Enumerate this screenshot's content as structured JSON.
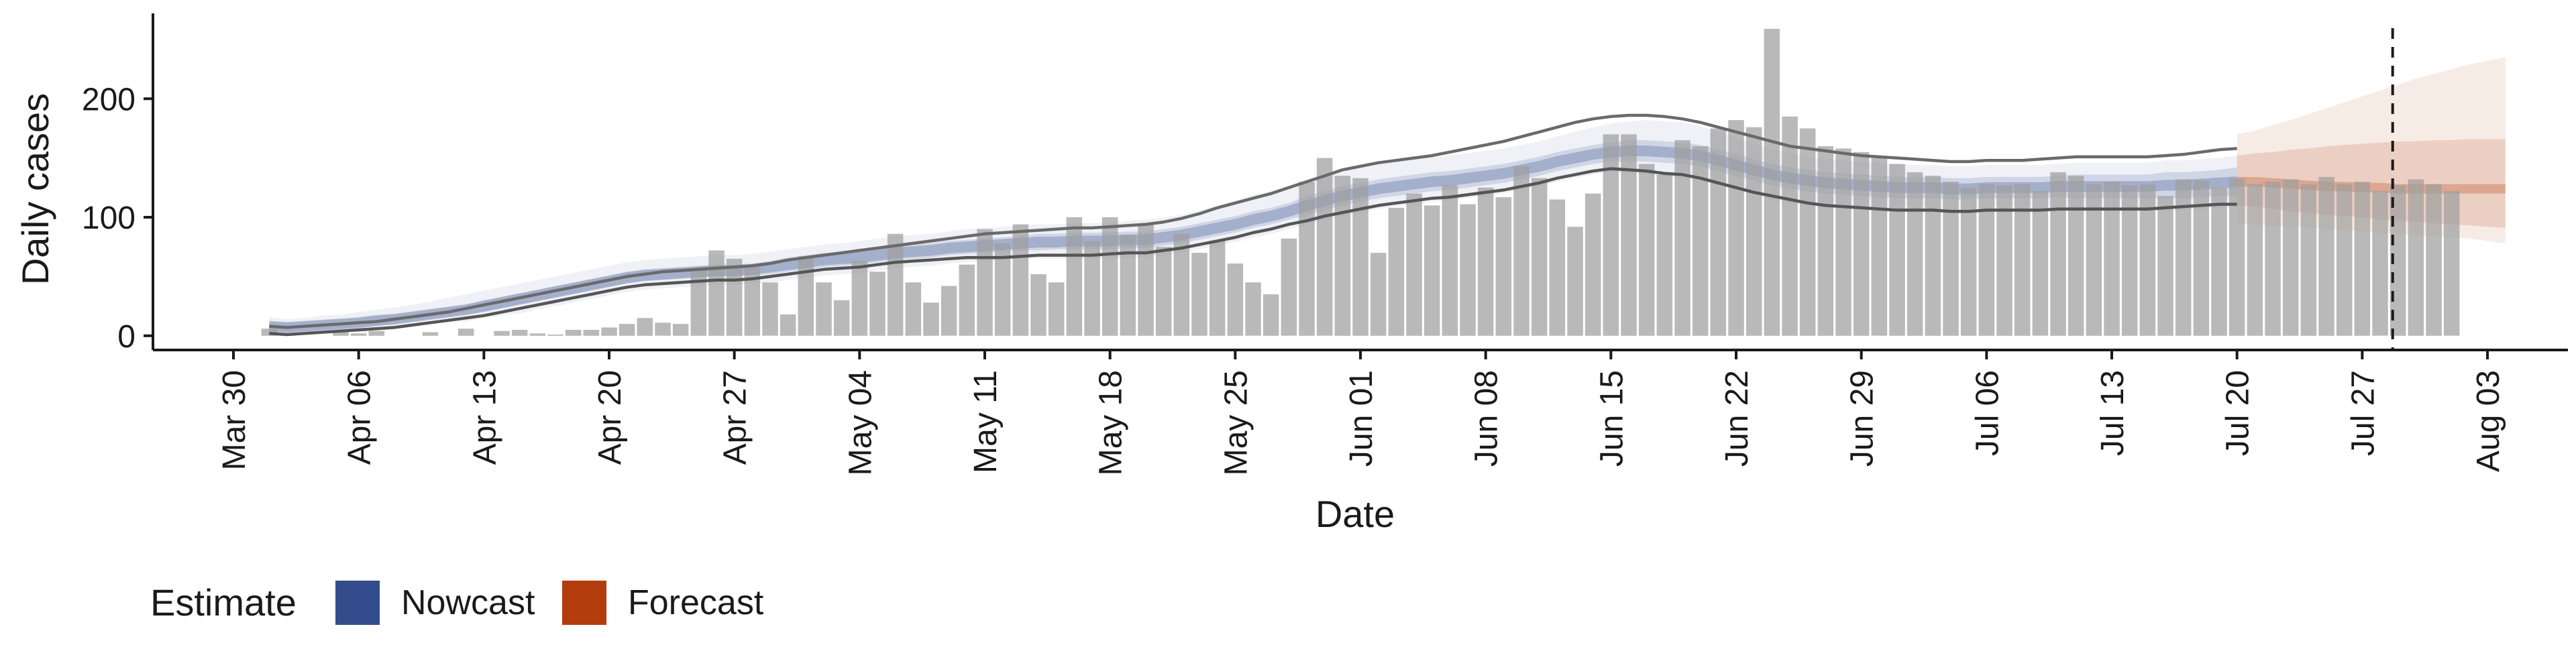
{
  "chart_data": {
    "type": "bar",
    "xlabel": "Date",
    "ylabel": "Daily cases",
    "yticks": [
      0,
      100,
      200
    ],
    "ylim": [
      -12,
      272
    ],
    "x_ticks": [
      "Mar 30",
      "Apr 06",
      "Apr 13",
      "Apr 20",
      "Apr 27",
      "May 04",
      "May 11",
      "May 18",
      "May 25",
      "Jun 01",
      "Jun 08",
      "Jun 15",
      "Jun 22",
      "Jun 29",
      "Jul 06",
      "Jul 13",
      "Jul 20",
      "Jul 27",
      "Aug 03"
    ],
    "x_tick_days": [
      0,
      7,
      14,
      21,
      28,
      35,
      42,
      49,
      56,
      63,
      70,
      77,
      84,
      91,
      98,
      105,
      112,
      119,
      126
    ],
    "x_range_days": [
      -4.5,
      130.5
    ],
    "first_bar_day": 2,
    "vline_day": 120.7,
    "grid": false,
    "daily_cases": [
      6,
      2,
      0,
      0,
      3,
      2,
      4,
      0,
      0,
      3,
      0,
      6,
      0,
      4,
      5,
      2,
      1,
      5,
      5,
      7,
      10,
      15,
      11,
      10,
      57,
      72,
      65,
      58,
      45,
      18,
      67,
      45,
      30,
      63,
      54,
      86,
      45,
      28,
      42,
      60,
      90,
      78,
      94,
      52,
      45,
      100,
      80,
      100,
      85,
      95,
      75,
      86,
      70,
      80,
      61,
      45,
      35,
      82,
      130,
      150,
      135,
      133,
      70,
      108,
      120,
      110,
      127,
      111,
      125,
      117,
      143,
      133,
      115,
      92,
      120,
      170,
      170,
      145,
      136,
      165,
      160,
      175,
      182,
      176,
      259,
      185,
      175,
      160,
      158,
      155,
      150,
      145,
      138,
      135,
      130,
      125,
      128,
      127,
      128,
      122,
      138,
      135,
      128,
      130,
      127,
      128,
      118,
      132,
      131,
      125,
      133,
      128,
      130,
      132,
      128,
      134,
      128,
      130,
      122,
      127,
      132,
      128,
      122
    ],
    "series": [
      {
        "name": "Nowcast",
        "color": "#324C8C",
        "start_day": 2,
        "end_day": 112,
        "median": [
          8,
          7,
          8,
          9,
          10,
          11,
          13,
          14,
          16,
          18,
          20,
          22,
          25,
          28,
          31,
          34,
          37,
          40,
          43,
          46,
          49,
          51,
          52,
          53,
          54,
          55,
          55,
          56,
          58,
          60,
          62,
          64,
          65,
          66,
          68,
          70,
          71,
          72,
          74,
          75,
          76,
          77,
          78,
          79,
          79,
          80,
          80,
          80,
          81,
          81,
          83,
          85,
          88,
          91,
          94,
          98,
          101,
          105,
          110,
          114,
          118,
          121,
          124,
          126,
          128,
          130,
          131,
          133,
          135,
          137,
          140,
          143,
          147,
          150,
          153,
          155,
          156,
          156,
          155,
          154,
          152,
          148,
          144,
          140,
          136,
          133,
          131,
          129,
          128,
          127,
          126,
          125,
          125,
          125,
          124,
          124,
          125,
          125,
          125,
          125,
          126,
          126,
          126,
          126,
          126,
          126,
          127,
          127,
          128,
          129,
          130
        ],
        "inner_lo": [
          4,
          3,
          4,
          5,
          6,
          7,
          8,
          10,
          12,
          14,
          16,
          18,
          20,
          23,
          26,
          29,
          32,
          35,
          38,
          41,
          44,
          46,
          47,
          48,
          49,
          50,
          50,
          51,
          52,
          54,
          56,
          58,
          59,
          60,
          62,
          64,
          65,
          66,
          68,
          69,
          70,
          71,
          72,
          72,
          73,
          73,
          73,
          73,
          74,
          74,
          76,
          78,
          81,
          84,
          87,
          91,
          94,
          98,
          102,
          106,
          110,
          113,
          116,
          118,
          120,
          122,
          123,
          125,
          127,
          129,
          132,
          135,
          139,
          142,
          145,
          147,
          147,
          147,
          146,
          145,
          143,
          139,
          135,
          131,
          127,
          124,
          122,
          120,
          119,
          118,
          117,
          116,
          116,
          116,
          115,
          115,
          116,
          116,
          116,
          116,
          117,
          116,
          116,
          116,
          116,
          116,
          116,
          116,
          117,
          118,
          118
        ],
        "inner_hi": [
          12,
          11,
          12,
          13,
          14,
          15,
          17,
          18,
          20,
          22,
          24,
          26,
          30,
          33,
          36,
          39,
          42,
          45,
          48,
          51,
          54,
          56,
          57,
          58,
          59,
          60,
          60,
          61,
          63,
          66,
          68,
          70,
          71,
          72,
          74,
          76,
          77,
          78,
          80,
          81,
          82,
          83,
          84,
          86,
          86,
          87,
          87,
          87,
          88,
          88,
          90,
          92,
          95,
          98,
          101,
          105,
          108,
          112,
          118,
          122,
          126,
          129,
          132,
          134,
          136,
          138,
          139,
          141,
          143,
          145,
          148,
          151,
          155,
          158,
          161,
          163,
          165,
          165,
          164,
          163,
          161,
          157,
          153,
          149,
          145,
          142,
          140,
          138,
          137,
          136,
          135,
          134,
          134,
          134,
          133,
          133,
          134,
          134,
          134,
          134,
          135,
          136,
          136,
          136,
          136,
          136,
          138,
          138,
          139,
          140,
          142
        ],
        "outer_lo": [
          1,
          0,
          1,
          2,
          3,
          3,
          4,
          6,
          8,
          10,
          11,
          12,
          15,
          17,
          19,
          22,
          25,
          28,
          31,
          34,
          37,
          39,
          40,
          41,
          42,
          43,
          43,
          44,
          45,
          47,
          49,
          51,
          52,
          53,
          55,
          57,
          58,
          59,
          61,
          62,
          63,
          64,
          65,
          65,
          65,
          65,
          65,
          65,
          66,
          66,
          68,
          70,
          73,
          76,
          79,
          83,
          86,
          90,
          94,
          97,
          101,
          104,
          107,
          109,
          111,
          113,
          114,
          116,
          118,
          120,
          123,
          126,
          130,
          133,
          136,
          138,
          137,
          136,
          134,
          133,
          131,
          127,
          123,
          119,
          115,
          112,
          110,
          108,
          107,
          106,
          105,
          104,
          104,
          104,
          103,
          103,
          104,
          104,
          104,
          104,
          105,
          105,
          105,
          105,
          105,
          105,
          106,
          106,
          107,
          108,
          108
        ],
        "outer_hi": [
          16,
          14,
          15,
          17,
          18,
          20,
          22,
          24,
          26,
          29,
          32,
          35,
          38,
          41,
          44,
          47,
          50,
          53,
          56,
          59,
          62,
          64,
          65,
          66,
          67,
          68,
          68,
          69,
          71,
          73,
          75,
          77,
          78,
          80,
          82,
          84,
          85,
          86,
          88,
          90,
          91,
          92,
          93,
          94,
          94,
          95,
          95,
          96,
          97,
          98,
          100,
          102,
          106,
          110,
          114,
          119,
          122,
          126,
          131,
          135,
          139,
          142,
          145,
          147,
          149,
          151,
          152,
          154,
          156,
          158,
          161,
          164,
          168,
          172,
          176,
          179,
          181,
          182,
          181,
          180,
          177,
          172,
          167,
          162,
          157,
          154,
          151,
          149,
          148,
          147,
          146,
          145,
          144,
          144,
          143,
          143,
          144,
          144,
          144,
          144,
          145,
          146,
          146,
          146,
          146,
          146,
          148,
          148,
          149,
          150,
          152
        ],
        "line_lo": [
          2,
          1,
          2,
          3,
          4,
          5,
          6,
          7,
          9,
          11,
          13,
          15,
          17,
          20,
          23,
          26,
          29,
          32,
          35,
          38,
          41,
          43,
          44,
          45,
          46,
          47,
          47,
          48,
          50,
          52,
          54,
          56,
          57,
          58,
          60,
          62,
          63,
          64,
          65,
          66,
          66,
          66,
          67,
          68,
          68,
          68,
          68,
          69,
          70,
          70,
          72,
          74,
          77,
          80,
          83,
          87,
          90,
          94,
          97,
          101,
          104,
          107,
          110,
          112,
          114,
          116,
          117,
          119,
          121,
          123,
          126,
          129,
          133,
          136,
          139,
          141,
          140,
          139,
          137,
          136,
          133,
          129,
          125,
          121,
          118,
          115,
          112,
          110,
          109,
          108,
          107,
          106,
          106,
          106,
          105,
          105,
          106,
          106,
          106,
          106,
          107,
          107,
          107,
          107,
          107,
          107,
          108,
          109,
          110,
          111,
          111
        ],
        "line_hi": [
          8,
          7,
          8,
          9,
          10,
          11,
          12,
          14,
          16,
          18,
          20,
          23,
          26,
          29,
          32,
          35,
          38,
          41,
          44,
          47,
          50,
          52,
          54,
          55,
          56,
          57,
          58,
          59,
          61,
          64,
          66,
          68,
          70,
          72,
          74,
          76,
          78,
          80,
          82,
          84,
          86,
          87,
          88,
          89,
          90,
          91,
          91,
          92,
          93,
          94,
          96,
          99,
          103,
          108,
          112,
          116,
          120,
          125,
          130,
          135,
          140,
          143,
          146,
          148,
          150,
          152,
          155,
          158,
          161,
          164,
          168,
          172,
          176,
          180,
          183,
          185,
          186,
          186,
          185,
          183,
          180,
          176,
          172,
          168,
          164,
          160,
          158,
          156,
          154,
          152,
          151,
          150,
          149,
          148,
          147,
          147,
          148,
          148,
          148,
          149,
          150,
          151,
          151,
          151,
          151,
          151,
          152,
          153,
          155,
          157,
          158
        ]
      },
      {
        "name": "Forecast",
        "color": "#B33C0C",
        "start_day": 112,
        "end_day": 127,
        "median": [
          130,
          130,
          129,
          128,
          127,
          126,
          126,
          125,
          125,
          124,
          124,
          124,
          124,
          124,
          124,
          124
        ],
        "inner_lo": [
          110,
          109,
          107,
          105,
          104,
          102,
          101,
          100,
          98,
          97,
          96,
          95,
          94,
          93,
          92,
          91
        ],
        "inner_hi": [
          152,
          154,
          155,
          157,
          158,
          160,
          161,
          162,
          163,
          164,
          164,
          165,
          165,
          166,
          166,
          166
        ],
        "outer_lo": [
          95,
          94,
          93,
          92,
          91,
          90,
          89,
          88,
          87,
          86,
          85,
          84,
          83,
          82,
          80,
          78
        ],
        "outer_hi": [
          170,
          173,
          178,
          182,
          187,
          192,
          197,
          202,
          207,
          212,
          217,
          221,
          225,
          229,
          232,
          235
        ]
      }
    ],
    "legend": {
      "title": "Estimate",
      "position": "bottom-left",
      "items": [
        {
          "label": "Nowcast",
          "color": "#324C8C"
        },
        {
          "label": "Forecast",
          "color": "#B33C0C"
        }
      ]
    }
  }
}
